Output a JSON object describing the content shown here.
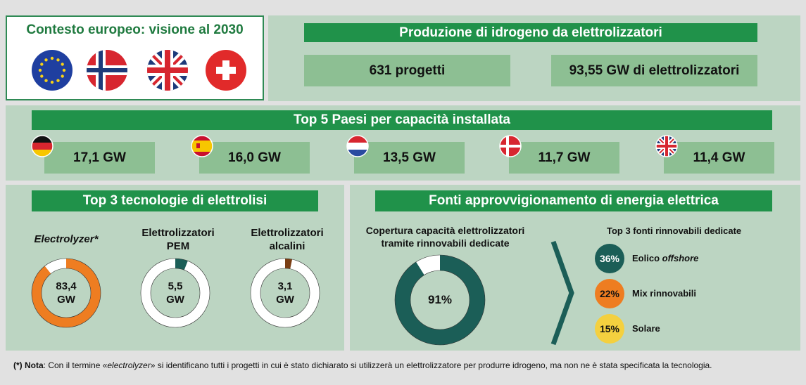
{
  "europe": {
    "title": "Contesto europeo: visione al 2030"
  },
  "production": {
    "title": "Produzione di idrogeno da elettrolizzatori",
    "projects": "631 progetti",
    "capacity": "93,55 GW di elettrolizzatori"
  },
  "top5": {
    "title": "Top 5 Paesi per capacità installata",
    "countries": [
      {
        "flag": "flag-germany-icon",
        "value": "17,1 GW"
      },
      {
        "flag": "flag-spain-icon",
        "value": "16,0 GW"
      },
      {
        "flag": "flag-netherlands-icon",
        "value": "13,5 GW"
      },
      {
        "flag": "flag-denmark-icon",
        "value": "11,7 GW"
      },
      {
        "flag": "flag-uk-icon",
        "value": "11,4 GW"
      }
    ]
  },
  "tech": {
    "title": "Top 3 tecnologie di elettrolisi",
    "items": [
      {
        "label": "Electrolyzer*",
        "value_line1": "83,4",
        "value_line2": "GW",
        "share": 0.892,
        "color": "#ee7d21"
      },
      {
        "label_line1": "Elettrolizzatori",
        "label_line2": "PEM",
        "value_line1": "5,5",
        "value_line2": "GW",
        "share": 0.059,
        "color": "#1b5e57"
      },
      {
        "label_line1": "Elettrolizzatori",
        "label_line2": "alcalini",
        "value_line1": "3,1",
        "value_line2": "GW",
        "share": 0.033,
        "color": "#7a3e14"
      }
    ]
  },
  "sources": {
    "title": "Fonti approvvigionamento di energia elettrica",
    "coverage_line1": "Copertura capacità elettrolizzatori",
    "coverage_line2": "tramite rinnovabili dedicate",
    "coverage_value": "91%",
    "coverage_share": 0.91,
    "top3_title": "Top 3 fonti rinnovabili dedicate",
    "items": [
      {
        "pct": "36%",
        "label": "Eolico ",
        "label_italic": "offshore",
        "color": "#1b5e57",
        "text_color": "#ffffff"
      },
      {
        "pct": "22%",
        "label": "Mix rinnovabili",
        "label_italic": "",
        "color": "#ee7d21",
        "text_color": "#111111"
      },
      {
        "pct": "15%",
        "label": "Solare",
        "label_italic": "",
        "color": "#f4d03f",
        "text_color": "#111111"
      }
    ]
  },
  "note": {
    "prefix": "(*) Nota",
    "text_a": ": Con il termine «",
    "text_italic": "electrolyzer",
    "text_b": "» si identificano tutti i progetti in cui è stato dichiarato si utilizzerà un elettrolizzatore per produrre idrogeno, ma non ne è stata specificata la tecnologia."
  },
  "colors": {
    "green_banner": "#20924a",
    "panel": "#bcd5c2",
    "chip": "#8dbf93",
    "teal": "#1b5e57",
    "orange": "#ee7d21",
    "brown": "#7a3e14",
    "yellow": "#f4d03f"
  }
}
